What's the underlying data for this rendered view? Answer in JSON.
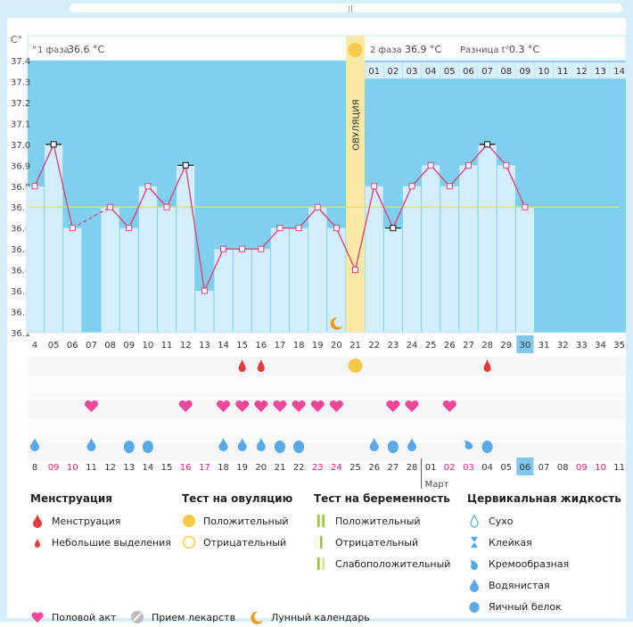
{
  "chart_meta": {
    "y_unit": "C°",
    "phase1_label": "1 фаза",
    "phase1_value": "36.6 °C",
    "phase2_label": "2 фаза",
    "phase2_value": "36.9 °C",
    "diff_label": "Разница t°",
    "diff_value": "0.3 °C",
    "ovulation_label": "ОВУЛЯЦИЯ",
    "month_label": "Март",
    "colors": {
      "sky": "#7fd0ef",
      "bar": "#d3efff",
      "line": "#e0457a",
      "ovulation": "#fbe9a6",
      "sun": "#f7c84a",
      "heart": "#f0479b",
      "drop_blue": "#5aa9e6",
      "drop_red": "#e23c3c",
      "mean_line": "#e8e24a",
      "highlight": "#7fc8ea"
    }
  },
  "chart_data": {
    "type": "line",
    "ylim": [
      36.1,
      37.4
    ],
    "yticks": [
      "37.4",
      "37.3",
      "37.2",
      "37.1",
      "37.0",
      "36.9",
      "36.8",
      "36.7",
      "36.6",
      "36.5",
      "36.4",
      "36.3",
      "36.2",
      "36.1"
    ],
    "cycle_days": [
      "4",
      "05",
      "06",
      "07",
      "08",
      "09",
      "10",
      "11",
      "12",
      "13",
      "14",
      "15",
      "16",
      "17",
      "18",
      "19",
      "20",
      "21",
      "22",
      "23",
      "24",
      "25",
      "26",
      "27",
      "28",
      "29",
      "30",
      "31",
      "32",
      "33",
      "34",
      "35"
    ],
    "phase2_days": [
      "01",
      "02",
      "03",
      "04",
      "05",
      "06",
      "07",
      "08",
      "09",
      "10",
      "11",
      "12",
      "13",
      "14"
    ],
    "temps": [
      36.8,
      37.0,
      36.6,
      null,
      36.7,
      36.6,
      36.8,
      36.7,
      36.9,
      36.3,
      36.5,
      36.5,
      36.5,
      36.6,
      36.6,
      36.7,
      36.6,
      36.4,
      36.8,
      36.6,
      36.8,
      36.9,
      36.8,
      36.9,
      37.0,
      36.9,
      36.7,
      null,
      null,
      null,
      null,
      null
    ],
    "highlight_day": "30",
    "ovulation_day": "21",
    "cover_line": 36.7,
    "dates": [
      "8",
      "09",
      "10",
      "11",
      "12",
      "13",
      "14",
      "15",
      "16",
      "17",
      "18",
      "19",
      "20",
      "21",
      "22",
      "23",
      "24",
      "25",
      "26",
      "27",
      "28",
      "01",
      "02",
      "03",
      "04",
      "05",
      "06",
      "07",
      "08",
      "09",
      "10",
      "11"
    ],
    "dates_red": [
      1,
      2,
      8,
      9,
      15,
      16,
      22,
      23,
      29,
      30
    ],
    "highlight_date": "06"
  },
  "legend": {
    "menstruation": {
      "title": "Менструация",
      "items": [
        "Менструация",
        "Небольшие выделения"
      ]
    },
    "ovulation_test": {
      "title": "Тест на овуляцию",
      "items": [
        "Положительный",
        "Отрицательный"
      ]
    },
    "pregnancy_test": {
      "title": "Тест на беременность",
      "items": [
        "Положительный",
        "Отрицательный",
        "Слабоположительный"
      ]
    },
    "cervical": {
      "title": "Цервикальная жидкость",
      "items": [
        "Сухо",
        "Клейкая",
        "Кремообразная",
        "Водянистая",
        "Яичный белок"
      ]
    },
    "other": [
      "Половой акт",
      "Прием лекарств",
      "Лунный календарь"
    ]
  }
}
